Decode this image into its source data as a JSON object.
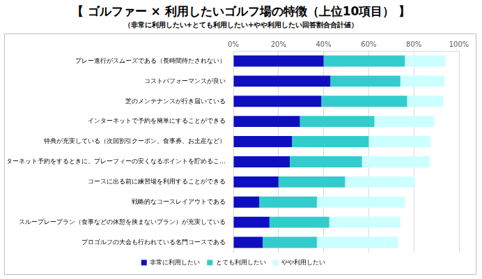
{
  "chart_data": {
    "type": "bar",
    "title": "【 ゴルファー × 利用したいゴルフ場の特徴（上位10項目） 】",
    "subtitle": "（非常に利用したい+とても利用したい+やや利用したい回答割合合計値）",
    "orientation": "horizontal",
    "stacked": true,
    "grid": true,
    "legend": "bottom",
    "categories": [
      "プレー進行がスムーズである（長時間待たされない）",
      "コストパフォーマンスが良い",
      "芝のメンテナンスが行き届いている",
      "インターネットで予約を簡単にすることができる",
      "特典が充実している（次回割引クーポン、食事券、お土産など）",
      "インターネット予約をするときに、プレーフィーの安くなるポイントを貯めるこ…",
      "コースに出る前に練習場を利用することができる",
      "戦略的なコースレイアウトである",
      "スループレープラン（食事などの休憩を挟まないプラン）が充実している",
      "プロゴルフの大会も行われている名門コースである"
    ],
    "series": [
      {
        "name": "非常に利用したい",
        "color": "#0f0fc0",
        "values": [
          40,
          43,
          39,
          29.5,
          26,
          25,
          20,
          11.5,
          16,
          13
        ]
      },
      {
        "name": "とても利用したい",
        "color": "#33cccc",
        "values": [
          36,
          31,
          38,
          33,
          34,
          32,
          29.5,
          25.5,
          26.5,
          24
        ]
      },
      {
        "name": "やや利用したい",
        "color": "#ccffff",
        "values": [
          18,
          19.5,
          16,
          26.5,
          27.5,
          30,
          31,
          39,
          31.5,
          36
        ]
      }
    ],
    "xlim": [
      0,
      100
    ],
    "xticks": [
      {
        "value": 0,
        "label": "0%"
      },
      {
        "value": 20,
        "label": "20%"
      },
      {
        "value": 40,
        "label": "40%"
      },
      {
        "value": 60,
        "label": "60%"
      },
      {
        "value": 80,
        "label": "80%"
      },
      {
        "value": 100,
        "label": "100%"
      }
    ]
  }
}
